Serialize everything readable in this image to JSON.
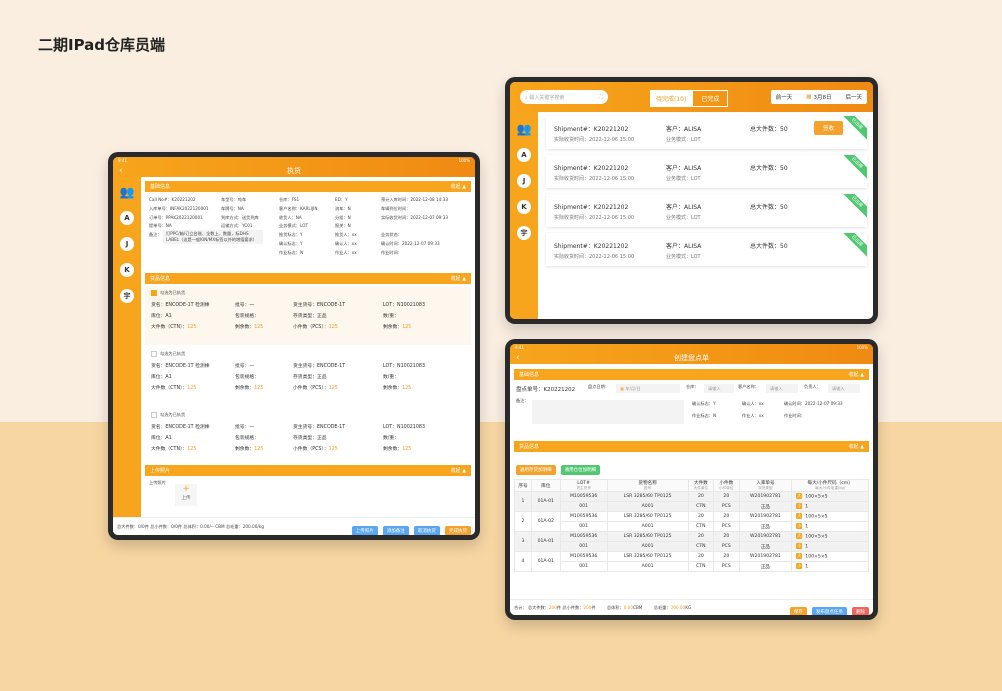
{
  "page_title": "二期IPad仓库员端",
  "tablet1": {
    "status_time": "9:41",
    "status_batt": "100%",
    "nav_title": "执货",
    "sidebar": [
      "A",
      "J",
      "K",
      "宇"
    ],
    "basic": {
      "header": "基础信息",
      "collapse": "收起",
      "rows": [
        [
          "Call No#：K20221202",
          "车型号：吨车",
          "仓库：FS1",
          "ED：Y",
          "预计入库时间：2022-12-08 14:33"
        ],
        [
          "入库单号：INFAK2022120001",
          "车牌号：NA",
          "客户名称：KARLIJIN",
          "流车：N",
          "车辆到位时间："
        ],
        [
          "订单号：PPAK2022120001",
          "到库方式：送货到库",
          "收货人：NA",
          "分组：N",
          "实际收货时间：2022-12-07 09:33"
        ],
        [
          "提单号：NA",
          "运输方式：YC01",
          "业务模式：LOT",
          "报关：N",
          ""
        ],
        [
          "备注：",
          "",
          "推货标志：Y",
          "推货人：xx",
          "业务状态："
        ],
        [
          "",
          "",
          "确认标志：Y",
          "确认人：xx",
          "确认时间：2022-12-07 09:33"
        ],
        [
          "",
          "",
          "作业标志：N",
          "作业人：xx",
          "作业时间："
        ]
      ],
      "remark": "打PPC/箱/订立台账、全数上、数量，标DHS LABEL（这是一般KIN/MX标签以外的增值要求）"
    },
    "goods": {
      "header": "货品信息",
      "collapse": "收起",
      "blocks": [
        {
          "checked": true,
          "check_label": "勾选为已执货",
          "cargo": "货名：ENCODE-1T 检测棒",
          "batch": "批号：一",
          "shipper_no": "货主货号：ENCODE-1T",
          "lot": "LOT：N10021083",
          "loc": "库位：A1",
          "pack": "包装规格：",
          "stock": "存货类型：正品",
          "qty_l": "数/重：",
          "ctn": "大件数（CTN）：",
          "ctn_v": "125",
          "rem": "剩余数：",
          "rem_v": "125",
          "pcs": "小件数（PCS）：",
          "pcs_v": "125",
          "rem2": "剩余数：",
          "rem2_v": "125"
        },
        {
          "checked": false,
          "check_label": "勾选为已执货",
          "cargo": "货名：ENCODE-1T 检测棒",
          "batch": "批号：一",
          "shipper_no": "货主货号：ENCODE-1T",
          "lot": "LOT：N10021083",
          "loc": "库位：A1",
          "pack": "包装规格：",
          "stock": "存货类型：正品",
          "qty_l": "数/重：",
          "ctn": "大件数（CTN）：",
          "ctn_v": "125",
          "rem": "剩余数：",
          "rem_v": "125",
          "pcs": "小件数（PCS）：",
          "pcs_v": "125",
          "rem2": "剩余数：",
          "rem2_v": "125"
        },
        {
          "checked": false,
          "check_label": "勾选为已执货",
          "cargo": "货名：ENCODE-1T 检测棒",
          "batch": "批号：一",
          "shipper_no": "货主货号：ENCODE-1T",
          "lot": "LOT：N10021083",
          "loc": "库位：A1",
          "pack": "包装规格：",
          "stock": "存货类型：正品",
          "qty_l": "数/重：",
          "ctn": "大件数（CTN）：",
          "ctn_v": "125",
          "rem": "剩余数：",
          "rem_v": "125",
          "pcs": "小件数（PCS）：",
          "pcs_v": "125",
          "rem2": "剩余数：",
          "rem2_v": "125"
        }
      ]
    },
    "upload": {
      "header": "上传照片",
      "collapse": "收起",
      "label": "上传照片",
      "btn": "上传"
    },
    "footer": {
      "summary": "总大件数：0/0件  总小件数：0/0件  总体积：0.00/-- CBM  总毛重：200.00/kg",
      "buttons": [
        "上传照片",
        "添加备注",
        "取消执货",
        "完成执货"
      ]
    }
  },
  "tablet2": {
    "search_placeholder": "输入关键字搜索",
    "tabs": [
      "待完成(10)",
      "已完成"
    ],
    "date_prev": "前一天",
    "date": "3月8日",
    "date_next": "后一天",
    "sidebar": [
      "A",
      "J",
      "K",
      "宇"
    ],
    "cards": [
      {
        "shipment": "Shipment#：K20221202",
        "time": "实际收货时间：2022-12-06 15:00",
        "customer": "客户：ALISA",
        "mode": "业务模式：LOT",
        "total": "总大件数：50",
        "action": "签收",
        "ribbon": "已出库"
      },
      {
        "shipment": "Shipment#：K20221202",
        "time": "实际收货时间：2022-12-06 15:00",
        "customer": "客户：ALISA",
        "mode": "业务模式：LOT",
        "total": "总大件数：50",
        "ribbon": "已出库"
      },
      {
        "shipment": "Shipment#：K20221202",
        "time": "实际收货时间：2022-12-06 15:00",
        "customer": "客户：ALISA",
        "mode": "业务模式：LOT",
        "total": "总大件数：50",
        "ribbon": "已出库"
      },
      {
        "shipment": "Shipment#：K20221202",
        "time": "实际收货时间：2022-12-06 15:00",
        "customer": "客户：ALISA",
        "mode": "业务模式：LOT",
        "total": "总大件数：50",
        "ribbon": "已出库"
      }
    ]
  },
  "tablet3": {
    "status_time": "9:41",
    "status_batt": "100%",
    "nav_title": "创建盘点单",
    "basic": {
      "header": "基础信息",
      "collapse": "收起",
      "order_no": "盘点单号：K20221202",
      "date_label": "盘点日期：",
      "date_ph": "年/月/日",
      "wh_label": "仓库：",
      "wh_ph": "请输入",
      "cust_label": "客户名称：",
      "cust_ph": "请输入",
      "owner_label": "负责人：",
      "owner_ph": "请输入",
      "remark_label": "备注：",
      "confirm_flag": "确认标志：Y",
      "confirmer": "确认人：xx",
      "confirm_time": "确认时间：2022-12-07 09:33",
      "work_flag": "作业标志：N",
      "worker": "作业人：xx",
      "work_time": "作业时间："
    },
    "goods": {
      "header": "货品信息",
      "collapse": "收起",
      "btn_add_goods": "通用存货加明细",
      "btn_add_loc": "通用仓位加明细",
      "columns": [
        {
          "t": "序号",
          "s": ""
        },
        {
          "t": "库位",
          "s": ""
        },
        {
          "t": "LOT#",
          "s": "货主货号"
        },
        {
          "t": "货物名称",
          "s": "批号"
        },
        {
          "t": "大件数",
          "s": "大件单位"
        },
        {
          "t": "小件数",
          "s": "小件单位"
        },
        {
          "t": "入库单号",
          "s": "存货类型"
        },
        {
          "t": "每大/小件尺码（cm）",
          "s": "每大/小件毛重(kg)"
        }
      ],
      "rows": [
        {
          "no": "1",
          "loc": "01A-01",
          "lot": "M10059536",
          "own": "001",
          "name": "LSR 3285/60 TP0125",
          "batch": "A001",
          "big": "20",
          "big_u": "CTN",
          "small": "20",
          "small_u": "PCS",
          "in_no": "W201902781",
          "type": "正品",
          "size_tag": "大",
          "size": "100×5×5",
          "wt_tag": "小",
          "wt": "1"
        },
        {
          "no": "2",
          "loc": "01A-02",
          "lot": "M10059536",
          "own": "001",
          "name": "LSR 3285/60 TP0125",
          "batch": "A001",
          "big": "20",
          "big_u": "CTN",
          "small": "20",
          "small_u": "PCS",
          "in_no": "W201902781",
          "type": "正品",
          "size_tag": "大",
          "size": "100×5×5",
          "wt_tag": "小",
          "wt": "1"
        },
        {
          "no": "3",
          "loc": "01A-01",
          "lot": "M10059536",
          "own": "001",
          "name": "LSR 3285/60 TP0125",
          "batch": "A001",
          "big": "20",
          "big_u": "CTN",
          "small": "20",
          "small_u": "PCS",
          "in_no": "W201902781",
          "type": "正品",
          "size_tag": "大",
          "size": "100×5×5",
          "wt_tag": "小",
          "wt": "1"
        },
        {
          "no": "4",
          "loc": "01A-01",
          "lot": "M10059536",
          "own": "001",
          "name": "LSR 3285/60 TP0125",
          "batch": "A001",
          "big": "20",
          "big_u": "CTN",
          "small": "20",
          "small_u": "PCS",
          "in_no": "W201902781",
          "type": "正品",
          "size_tag": "大",
          "size": "100×5×5",
          "wt_tag": "小",
          "wt": "1"
        }
      ]
    },
    "footer": {
      "total": "合计：",
      "big": "总大件数：",
      "big_v": "200",
      "big_u": "件",
      "small": "总小件数：",
      "small_v": "200",
      "small_u": "件",
      "vol": "总体积：",
      "vol_v": "0.00",
      "vol_u": "CBM",
      "wt": "总毛重：",
      "wt_v": "200.00",
      "wt_u": "KG",
      "buttons": [
        "保存",
        "发布盘点任务",
        "删除"
      ]
    }
  }
}
